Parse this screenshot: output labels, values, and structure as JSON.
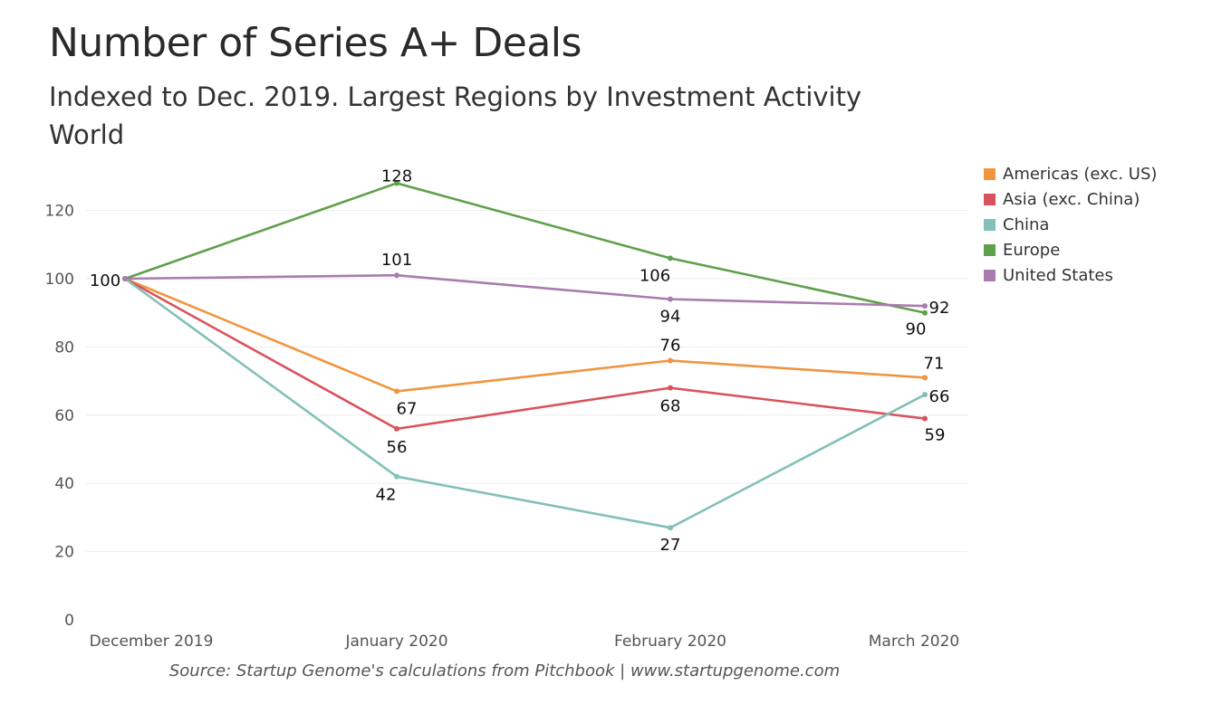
{
  "title": "Number of Series A+ Deals",
  "subtitle_line1": "Indexed to Dec. 2019. Largest Regions by Investment Activity",
  "subtitle_line2": "World",
  "source": "Source: Startup Genome's calculations from Pitchbook | www.startupgenome.com",
  "chart_data": {
    "type": "line",
    "title": "Number of Series A+ Deals",
    "subtitle": "Indexed to Dec. 2019. Largest Regions by Investment Activity",
    "categories": [
      "December 2019",
      "January 2020",
      "February 2020",
      "March 2020"
    ],
    "ylim": [
      0,
      130
    ],
    "yticks": [
      0,
      20,
      40,
      60,
      80,
      100,
      120
    ],
    "grid": true,
    "legend_position": "right",
    "series": [
      {
        "name": "Americas (exc. US)",
        "color": "#f0953f",
        "values": [
          100,
          67,
          76,
          71
        ]
      },
      {
        "name": "Asia (exc. China)",
        "color": "#d9535d",
        "values": [
          100,
          56,
          68,
          59
        ]
      },
      {
        "name": "China",
        "color": "#82c0b8",
        "values": [
          100,
          42,
          27,
          66
        ]
      },
      {
        "name": "Europe",
        "color": "#5fa04c",
        "values": [
          100,
          128,
          106,
          90
        ]
      },
      {
        "name": "United States",
        "color": "#a97cae",
        "values": [
          100,
          101,
          94,
          92
        ]
      }
    ],
    "data_labels": [
      {
        "series": "Americas (exc. US)",
        "point": 1,
        "text": "67"
      },
      {
        "series": "Americas (exc. US)",
        "point": 2,
        "text": "76"
      },
      {
        "series": "Americas (exc. US)",
        "point": 3,
        "text": "71"
      },
      {
        "series": "Asia (exc. China)",
        "point": 1,
        "text": "56"
      },
      {
        "series": "Asia (exc. China)",
        "point": 2,
        "text": "68"
      },
      {
        "series": "Asia (exc. China)",
        "point": 3,
        "text": "59"
      },
      {
        "series": "China",
        "point": 1,
        "text": "42"
      },
      {
        "series": "China",
        "point": 2,
        "text": "27"
      },
      {
        "series": "China",
        "point": 3,
        "text": "66"
      },
      {
        "series": "Europe",
        "point": 1,
        "text": "128"
      },
      {
        "series": "Europe",
        "point": 2,
        "text": "106"
      },
      {
        "series": "Europe",
        "point": 3,
        "text": "90"
      },
      {
        "series": "United States",
        "point": 0,
        "text": "100"
      },
      {
        "series": "United States",
        "point": 1,
        "text": "101"
      },
      {
        "series": "United States",
        "point": 2,
        "text": "94"
      },
      {
        "series": "United States",
        "point": 3,
        "text": "92"
      }
    ]
  }
}
